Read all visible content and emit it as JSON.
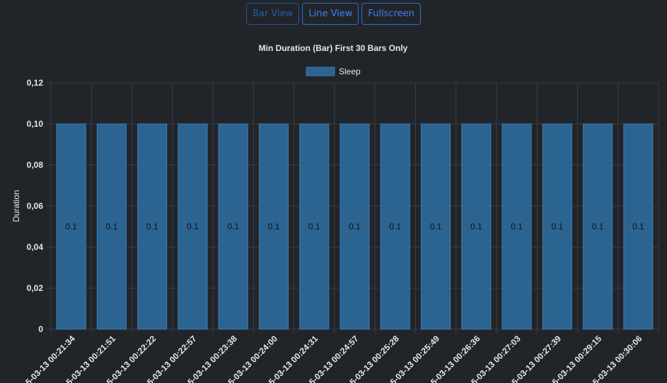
{
  "toolbar": {
    "bar_view": "Bar View",
    "line_view": "Line View",
    "fullscreen": "Fullscreen"
  },
  "colors": {
    "background": "#212428",
    "bar_fill": "#2c6491",
    "bar_stroke": "#3a7bb0",
    "grid": "#3a3d42",
    "text": "#e6e6e6",
    "button_accent": "#3b82f6"
  },
  "chart_data": {
    "type": "bar",
    "title": "Min Duration (Bar) First 30 Bars Only",
    "ylabel": "Duration",
    "xlabel": "",
    "ylim": [
      0,
      0.12
    ],
    "yticks": [
      "0",
      "0,02",
      "0,04",
      "0,06",
      "0,08",
      "0,10",
      "0,12"
    ],
    "grid": true,
    "legend": "top-center",
    "categories": [
      "5-03-13 00:21:34",
      "5-03-13 00:21:51",
      "5-03-13 00:22:22",
      "5-03-13 00:22:57",
      "5-03-13 00:23:38",
      "5-03-13 00:24:00",
      "5-03-13 00:24:31",
      "5-03-13 00:24:57",
      "5-03-13 00:25:28",
      "5-03-13 00:25:49",
      "5-03-13 00:26:36",
      "5-03-13 00:27:03",
      "5-03-13 00:27:39",
      "5-03-13 00:29:15",
      "5-03-13 00:30:06"
    ],
    "series": [
      {
        "name": "Sleep",
        "values": [
          0.1,
          0.1,
          0.1,
          0.1,
          0.1,
          0.1,
          0.1,
          0.1,
          0.1,
          0.1,
          0.1,
          0.1,
          0.1,
          0.1,
          0.1
        ],
        "data_labels": [
          "0.1",
          "0.1",
          "0.1",
          "0.1",
          "0.1",
          "0.1",
          "0.1",
          "0.1",
          "0.1",
          "0.1",
          "0.1",
          "0.1",
          "0.1",
          "0.1",
          "0.1"
        ]
      }
    ]
  }
}
